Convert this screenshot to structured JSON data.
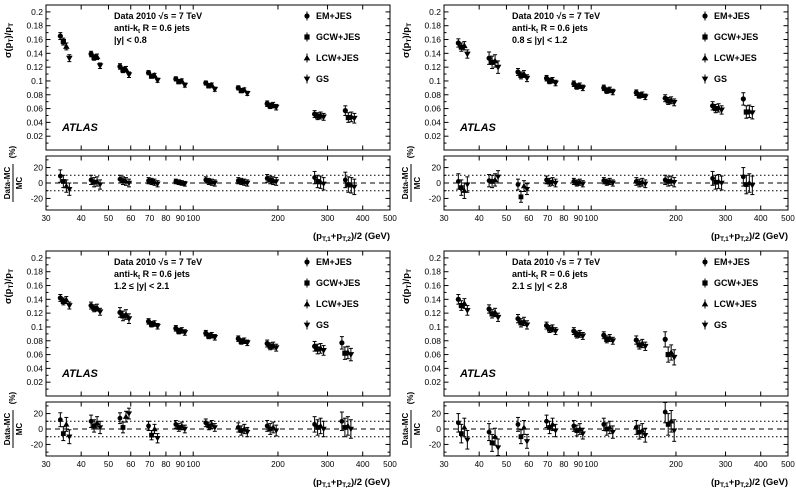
{
  "chart_data": {
    "type": "scatter",
    "x_axis": {
      "scale": "log",
      "min": 30,
      "max": 500,
      "ticks": [
        30,
        40,
        50,
        60,
        70,
        80,
        90,
        100,
        200,
        300,
        400,
        500
      ],
      "title": "(p_{T,1}+p_{T,2})/2 (GeV)"
    },
    "y_axis_main": {
      "min": 0,
      "max": 0.21,
      "major_ticks": [
        0.02,
        0.04,
        0.06,
        0.08,
        0.1,
        0.12,
        0.14,
        0.16,
        0.18,
        0.2
      ],
      "title": "σ(p_{T})/p_{T}"
    },
    "y_axis_ratio": {
      "min": -35,
      "max": 35,
      "labeled_ticks": [
        -20,
        0,
        20
      ],
      "guide_dashed": 0,
      "guides_dotted": [
        -10,
        10
      ],
      "title_numerator": "Data-MC",
      "title_denominator": "MC",
      "title_suffix": "(%)"
    },
    "legend": [
      {
        "label": "EM+JES",
        "marker": "circle"
      },
      {
        "label": "GCW+JES",
        "marker": "square"
      },
      {
        "label": "LCW+JES",
        "marker": "triangle-up"
      },
      {
        "label": "GS",
        "marker": "triangle-down"
      }
    ],
    "panels": [
      {
        "info_lines": [
          "Data 2010   √s = 7 TeV",
          "anti-k_{t} R = 0.6 jets",
          "|y| < 0.8"
        ],
        "atlas": "ATLAS",
        "x": [
          35,
          45,
          57,
          72,
          90,
          115,
          150,
          190,
          280,
          360
        ],
        "yerr": [
          0.005,
          0.004,
          0.004,
          0.003,
          0.003,
          0.003,
          0.003,
          0.004,
          0.005,
          0.007
        ],
        "ratio_err": [
          8,
          6,
          5,
          4,
          3,
          4,
          4,
          5,
          8,
          10
        ],
        "series": [
          {
            "name": "EM+JES",
            "marker": "circle",
            "y": [
              0.165,
              0.139,
              0.121,
              0.112,
              0.103,
              0.097,
              0.09,
              0.067,
              0.052,
              0.057
            ],
            "ratio": [
              9,
              4,
              5,
              3,
              2,
              4,
              3,
              6,
              7,
              4
            ]
          },
          {
            "name": "GCW+JES",
            "marker": "square",
            "y": [
              0.157,
              0.134,
              0.116,
              0.107,
              0.099,
              0.093,
              0.086,
              0.064,
              0.049,
              0.047
            ],
            "ratio": [
              2,
              1,
              3,
              2,
              1,
              2,
              2,
              4,
              2,
              -2
            ]
          },
          {
            "name": "LCW+JES",
            "marker": "triangle-up",
            "y": [
              0.15,
              0.135,
              0.117,
              0.108,
              0.1,
              0.094,
              0.087,
              0.065,
              0.05,
              0.048
            ],
            "ratio": [
              -4,
              2,
              2,
              1,
              0,
              1,
              1,
              3,
              1,
              -3
            ]
          },
          {
            "name": "GS",
            "marker": "triangle-down",
            "y": [
              0.133,
              0.122,
              0.109,
              0.101,
              0.094,
              0.088,
              0.082,
              0.062,
              0.048,
              0.046
            ],
            "ratio": [
              -8,
              -2,
              0,
              -1,
              -1,
              0,
              0,
              2,
              -1,
              -5
            ]
          }
        ]
      },
      {
        "info_lines": [
          "Data 2010   √s = 7 TeV",
          "anti-k_{t} R = 0.6 jets",
          "0.8 ≤ |y| < 1.2"
        ],
        "atlas": "ATLAS",
        "x": [
          35,
          45,
          57,
          72,
          90,
          115,
          150,
          190,
          280,
          360
        ],
        "yerr": [
          0.006,
          0.009,
          0.005,
          0.004,
          0.004,
          0.004,
          0.004,
          0.005,
          0.006,
          0.009
        ],
        "ratio_err": [
          10,
          8,
          7,
          5,
          4,
          4,
          5,
          6,
          9,
          12
        ],
        "series": [
          {
            "name": "EM+JES",
            "marker": "circle",
            "y": [
              0.155,
              0.133,
              0.113,
              0.104,
              0.096,
              0.09,
              0.083,
              0.075,
              0.064,
              0.074
            ],
            "ratio": [
              2,
              3,
              -2,
              4,
              2,
              3,
              2,
              4,
              6,
              8
            ]
          },
          {
            "name": "GCW+JES",
            "marker": "square",
            "y": [
              0.149,
              0.127,
              0.108,
              0.1,
              0.092,
              0.086,
              0.079,
              0.071,
              0.06,
              0.055
            ],
            "ratio": [
              -6,
              2,
              -18,
              1,
              0,
              1,
              0,
              2,
              1,
              -2
            ]
          },
          {
            "name": "LCW+JES",
            "marker": "triangle-up",
            "y": [
              0.151,
              0.129,
              0.11,
              0.101,
              0.093,
              0.087,
              0.08,
              0.072,
              0.061,
              0.056
            ],
            "ratio": [
              -10,
              4,
              -4,
              2,
              1,
              2,
              1,
              3,
              2,
              0
            ]
          },
          {
            "name": "GS",
            "marker": "triangle-down",
            "y": [
              0.139,
              0.12,
              0.104,
              0.097,
              0.09,
              0.084,
              0.077,
              0.069,
              0.058,
              0.054
            ],
            "ratio": [
              -2,
              8,
              -8,
              0,
              -1,
              0,
              -1,
              1,
              0,
              -3
            ]
          }
        ]
      },
      {
        "info_lines": [
          "Data 2010   √s = 7 TeV",
          "anti-k_{t} R = 0.6 jets",
          "1.2 ≤ |y| < 2.1"
        ],
        "atlas": "ATLAS",
        "x": [
          35,
          45,
          57,
          72,
          90,
          115,
          150,
          190,
          280,
          350
        ],
        "yerr": [
          0.005,
          0.005,
          0.007,
          0.004,
          0.004,
          0.004,
          0.004,
          0.005,
          0.007,
          0.009
        ],
        "ratio_err": [
          9,
          8,
          7,
          6,
          5,
          5,
          6,
          7,
          10,
          12
        ],
        "series": [
          {
            "name": "EM+JES",
            "marker": "circle",
            "y": [
              0.142,
              0.131,
              0.121,
              0.108,
              0.098,
              0.091,
              0.083,
              0.076,
              0.072,
              0.077
            ],
            "ratio": [
              12,
              10,
              14,
              4,
              6,
              8,
              2,
              4,
              6,
              10
            ]
          },
          {
            "name": "GCW+JES",
            "marker": "square",
            "y": [
              0.137,
              0.127,
              0.116,
              0.104,
              0.094,
              0.087,
              0.079,
              0.072,
              0.068,
              0.062
            ],
            "ratio": [
              -6,
              4,
              2,
              -8,
              2,
              4,
              -2,
              0,
              2,
              2
            ]
          },
          {
            "name": "LCW+JES",
            "marker": "triangle-up",
            "y": [
              0.139,
              0.128,
              0.118,
              0.105,
              0.095,
              0.088,
              0.08,
              0.073,
              0.069,
              0.063
            ],
            "ratio": [
              6,
              8,
              16,
              0,
              4,
              6,
              0,
              2,
              4,
              4
            ]
          },
          {
            "name": "GS",
            "marker": "triangle-down",
            "y": [
              0.131,
              0.122,
              0.112,
              0.101,
              0.092,
              0.085,
              0.077,
              0.07,
              0.066,
              0.06
            ],
            "ratio": [
              -10,
              2,
              20,
              -12,
              0,
              2,
              -4,
              -2,
              0,
              0
            ]
          }
        ]
      },
      {
        "info_lines": [
          "Data 2010   √s = 7 TeV",
          "anti-k_{t} R = 0.6 jets",
          "2.1 ≤ |y| < 2.8"
        ],
        "atlas": "ATLAS",
        "x": [
          35,
          45,
          57,
          72,
          90,
          115,
          150,
          190
        ],
        "yerr": [
          0.007,
          0.006,
          0.006,
          0.005,
          0.005,
          0.005,
          0.006,
          0.011
        ],
        "ratio_err": [
          12,
          11,
          9,
          8,
          7,
          8,
          9,
          14
        ],
        "series": [
          {
            "name": "EM+JES",
            "marker": "circle",
            "y": [
              0.14,
              0.126,
              0.112,
              0.102,
              0.094,
              0.088,
              0.081,
              0.082
            ],
            "ratio": [
              8,
              -4,
              6,
              10,
              4,
              6,
              2,
              22
            ]
          },
          {
            "name": "GCW+JES",
            "marker": "square",
            "y": [
              0.131,
              0.119,
              0.106,
              0.097,
              0.089,
              0.082,
              0.074,
              0.06
            ],
            "ratio": [
              -6,
              -18,
              -10,
              2,
              -2,
              0,
              -4,
              6
            ]
          },
          {
            "name": "LCW+JES",
            "marker": "triangle-up",
            "y": [
              0.134,
              0.121,
              0.108,
              0.098,
              0.09,
              0.084,
              0.076,
              0.063
            ],
            "ratio": [
              2,
              -10,
              2,
              6,
              0,
              2,
              -2,
              10
            ]
          },
          {
            "name": "GS",
            "marker": "triangle-down",
            "y": [
              0.124,
              0.114,
              0.103,
              0.094,
              0.087,
              0.08,
              0.072,
              0.056
            ],
            "ratio": [
              -14,
              -24,
              -16,
              -2,
              -6,
              -4,
              -8,
              -2
            ]
          }
        ]
      }
    ],
    "colors": {
      "marker": "#000000",
      "axis": "#000000",
      "background": "#ffffff"
    }
  }
}
